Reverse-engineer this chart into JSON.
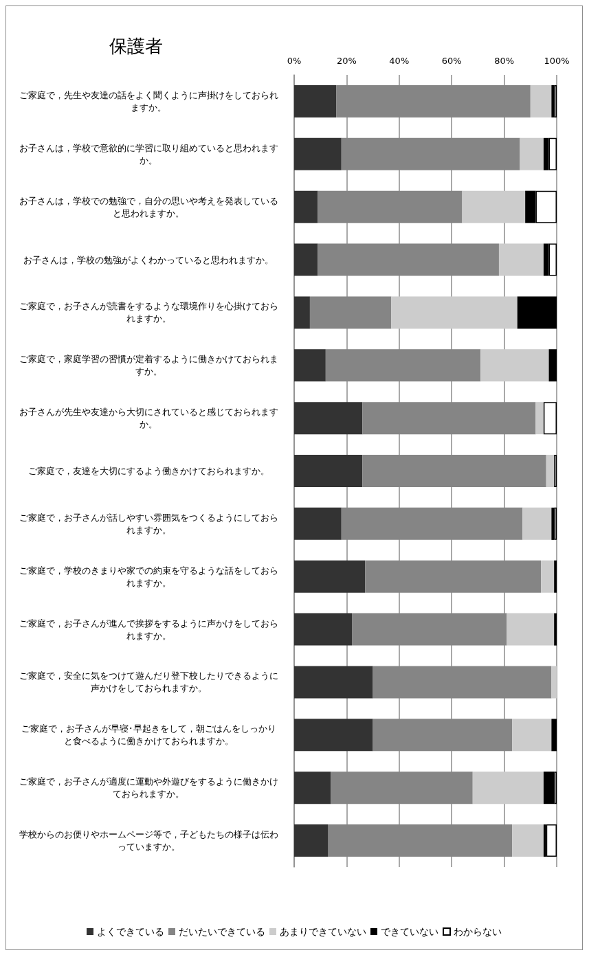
{
  "chart_data": {
    "type": "bar",
    "orientation": "horizontal",
    "stacked": true,
    "title": "保護者",
    "categories": [
      "ご家庭で，先生や友達の話をよく聞くように声掛けをしておられますか。",
      "お子さんは，学校で意欲的に学習に取り組めていると思われますか。",
      "お子さんは，学校での勉強で，自分の思いや考えを発表していると思われますか。",
      "お子さんは，学校の勉強がよくわかっていると思われますか。",
      "ご家庭で，お子さんが読書をするような環境作りを心掛けておられますか。",
      "ご家庭で，家庭学習の習慣が定着するように働きかけておられますか。",
      "お子さんが先生や友達から大切にされていると感じておられますか。",
      "ご家庭で，友達を大切にするよう働きかけておられますか。",
      "ご家庭で，お子さんが話しやすい雰囲気をつくるようにしておられますか。",
      "ご家庭で，学校のきまりや家での約束を守るような話をしておられますか。",
      "ご家庭で，お子さんが進んで挨拶をするように声かけをしておられますか。",
      "ご家庭で，安全に気をつけて遊んだり登下校したりできるように声かけをしておられますか。",
      "ご家庭で，お子さんが早寝･早起きをして，朝ごはんをしっかりと食べるように働きかけておられますか。",
      "ご家庭で，お子さんが適度に運動や外遊びをするように働きかけておられますか。",
      "学校からのお便りやホームページ等で，子どもたちの様子は伝わっていますか。"
    ],
    "series": [
      {
        "name": "よくできている",
        "color": "#333333",
        "values": [
          16,
          18,
          9,
          9,
          6,
          12,
          26,
          26,
          18,
          27,
          22,
          30,
          30,
          14,
          13
        ]
      },
      {
        "name": "だいたいできている",
        "color": "#858585",
        "values": [
          74,
          68,
          55,
          69,
          31,
          59,
          66,
          70,
          69,
          67,
          59,
          68,
          53,
          54,
          70
        ]
      },
      {
        "name": "あまりできていない",
        "color": "#cccccc",
        "values": [
          8,
          9,
          24,
          17,
          48,
          26,
          3,
          3,
          11,
          5,
          18,
          2,
          15,
          27,
          12
        ]
      },
      {
        "name": "できていない",
        "color": "#000000",
        "values": [
          1,
          2,
          4,
          2,
          15,
          3,
          0,
          0,
          1,
          1,
          1,
          0,
          2,
          4,
          1
        ]
      },
      {
        "name": "わからない",
        "color": "#ffffff",
        "values": [
          1,
          3,
          8,
          3,
          0,
          0,
          5,
          1,
          1,
          0,
          0,
          0,
          0,
          1,
          4
        ]
      }
    ],
    "xlim": [
      0,
      100
    ],
    "xticks": [
      {
        "value": 0,
        "label": "0%"
      },
      {
        "value": 20,
        "label": "20%"
      },
      {
        "value": 40,
        "label": "40%"
      },
      {
        "value": 60,
        "label": "60%"
      },
      {
        "value": 80,
        "label": "80%"
      },
      {
        "value": 100,
        "label": "100%"
      }
    ],
    "grid": "x",
    "legend": "bottom"
  }
}
